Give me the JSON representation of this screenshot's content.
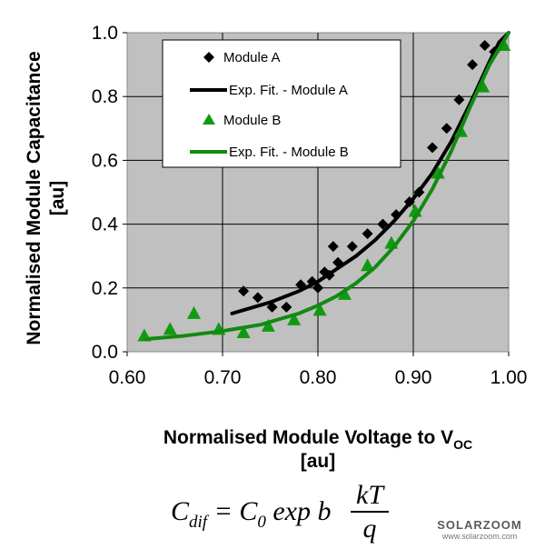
{
  "chart_data": {
    "type": "scatter",
    "xlabel_line1": "Normalised Module Voltage to  V",
    "xlabel_sub": "OC",
    "xlabel_line2": "[au]",
    "ylabel_line1": "Normalised Module Capacitance",
    "ylabel_line2": "[au]",
    "xlim": [
      0.6,
      1.0
    ],
    "ylim": [
      0.0,
      1.0
    ],
    "xticks": [
      "0.60",
      "0.70",
      "0.80",
      "0.90",
      "1.00"
    ],
    "yticks": [
      "0.0",
      "0.2",
      "0.4",
      "0.6",
      "0.8",
      "1.0"
    ],
    "grid": true,
    "legend_position": "top-left",
    "series": [
      {
        "name": "Module A",
        "marker": "diamond",
        "color": "#000000",
        "x": [
          0.722,
          0.737,
          0.752,
          0.767,
          0.782,
          0.794,
          0.8,
          0.807,
          0.812,
          0.816,
          0.821,
          0.836,
          0.852,
          0.868,
          0.882,
          0.896,
          0.906,
          0.92,
          0.935,
          0.948,
          0.962,
          0.975,
          0.985
        ],
        "y": [
          0.19,
          0.17,
          0.14,
          0.14,
          0.21,
          0.22,
          0.2,
          0.25,
          0.24,
          0.33,
          0.28,
          0.33,
          0.37,
          0.4,
          0.43,
          0.47,
          0.5,
          0.64,
          0.7,
          0.79,
          0.9,
          0.96,
          0.94
        ]
      },
      {
        "name": "Exp. Fit. - Module A",
        "kind": "fit",
        "color": "#000000",
        "x": [
          0.71,
          0.75,
          0.78,
          0.8,
          0.82,
          0.84,
          0.86,
          0.88,
          0.9,
          0.92,
          0.94,
          0.96,
          0.98,
          0.99,
          1.0
        ],
        "y": [
          0.12,
          0.155,
          0.19,
          0.22,
          0.26,
          0.3,
          0.35,
          0.41,
          0.48,
          0.56,
          0.66,
          0.78,
          0.91,
          0.97,
          1.0
        ]
      },
      {
        "name": "Module B",
        "marker": "triangle",
        "color": "#119a11",
        "x": [
          0.618,
          0.645,
          0.67,
          0.696,
          0.722,
          0.748,
          0.775,
          0.802,
          0.828,
          0.852,
          0.877,
          0.902,
          0.926,
          0.95,
          0.973,
          0.995
        ],
        "y": [
          0.05,
          0.07,
          0.12,
          0.07,
          0.06,
          0.08,
          0.1,
          0.13,
          0.18,
          0.27,
          0.34,
          0.44,
          0.56,
          0.69,
          0.83,
          0.96
        ]
      },
      {
        "name": "Exp. Fit. - Module B",
        "kind": "fit",
        "color": "#118a11",
        "x": [
          0.62,
          0.66,
          0.7,
          0.74,
          0.78,
          0.8,
          0.82,
          0.84,
          0.86,
          0.88,
          0.9,
          0.92,
          0.94,
          0.96,
          0.98,
          1.0
        ],
        "y": [
          0.04,
          0.05,
          0.065,
          0.085,
          0.12,
          0.145,
          0.175,
          0.215,
          0.265,
          0.33,
          0.41,
          0.51,
          0.63,
          0.77,
          0.9,
          1.0
        ]
      }
    ]
  },
  "formula": {
    "lhs": "C",
    "lhs_sub": "dif",
    "rhs": " = C",
    "rhs_sub": "0",
    "rhs_tail": " exp b ",
    "frac_num": "kT",
    "frac_den": "q"
  },
  "watermark": {
    "brand": "SOLARZOOM",
    "url": "www.solarzoom.com"
  }
}
